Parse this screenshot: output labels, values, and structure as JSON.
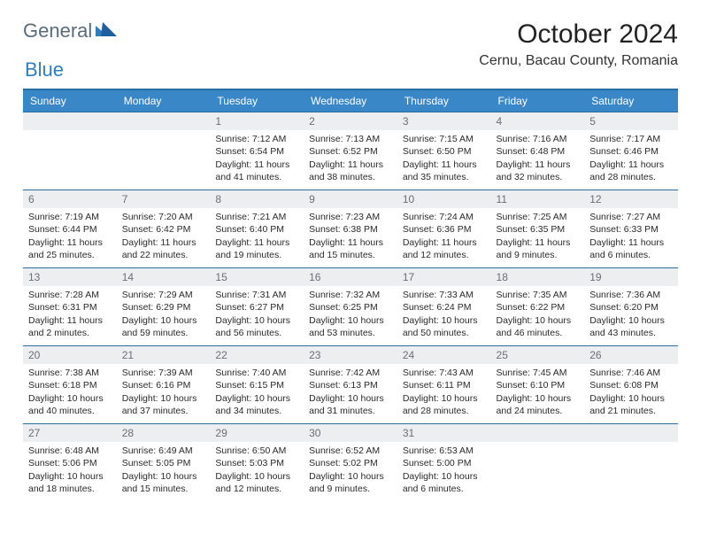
{
  "logo": {
    "text1": "General",
    "text2": "Blue"
  },
  "title": "October 2024",
  "location": "Cernu, Bacau County, Romania",
  "colors": {
    "header_bg": "#3a87c8",
    "header_border": "#2a6da3",
    "daynum_bg": "#eceeef",
    "daynum_color": "#6a6f74",
    "logo_gray": "#5a6b7a",
    "logo_blue": "#2f7fbf"
  },
  "dayHeaders": [
    "Sunday",
    "Monday",
    "Tuesday",
    "Wednesday",
    "Thursday",
    "Friday",
    "Saturday"
  ],
  "weeks": [
    [
      null,
      null,
      {
        "n": "1",
        "sr": "7:12 AM",
        "ss": "6:54 PM",
        "dl": "11 hours and 41 minutes."
      },
      {
        "n": "2",
        "sr": "7:13 AM",
        "ss": "6:52 PM",
        "dl": "11 hours and 38 minutes."
      },
      {
        "n": "3",
        "sr": "7:15 AM",
        "ss": "6:50 PM",
        "dl": "11 hours and 35 minutes."
      },
      {
        "n": "4",
        "sr": "7:16 AM",
        "ss": "6:48 PM",
        "dl": "11 hours and 32 minutes."
      },
      {
        "n": "5",
        "sr": "7:17 AM",
        "ss": "6:46 PM",
        "dl": "11 hours and 28 minutes."
      }
    ],
    [
      {
        "n": "6",
        "sr": "7:19 AM",
        "ss": "6:44 PM",
        "dl": "11 hours and 25 minutes."
      },
      {
        "n": "7",
        "sr": "7:20 AM",
        "ss": "6:42 PM",
        "dl": "11 hours and 22 minutes."
      },
      {
        "n": "8",
        "sr": "7:21 AM",
        "ss": "6:40 PM",
        "dl": "11 hours and 19 minutes."
      },
      {
        "n": "9",
        "sr": "7:23 AM",
        "ss": "6:38 PM",
        "dl": "11 hours and 15 minutes."
      },
      {
        "n": "10",
        "sr": "7:24 AM",
        "ss": "6:36 PM",
        "dl": "11 hours and 12 minutes."
      },
      {
        "n": "11",
        "sr": "7:25 AM",
        "ss": "6:35 PM",
        "dl": "11 hours and 9 minutes."
      },
      {
        "n": "12",
        "sr": "7:27 AM",
        "ss": "6:33 PM",
        "dl": "11 hours and 6 minutes."
      }
    ],
    [
      {
        "n": "13",
        "sr": "7:28 AM",
        "ss": "6:31 PM",
        "dl": "11 hours and 2 minutes."
      },
      {
        "n": "14",
        "sr": "7:29 AM",
        "ss": "6:29 PM",
        "dl": "10 hours and 59 minutes."
      },
      {
        "n": "15",
        "sr": "7:31 AM",
        "ss": "6:27 PM",
        "dl": "10 hours and 56 minutes."
      },
      {
        "n": "16",
        "sr": "7:32 AM",
        "ss": "6:25 PM",
        "dl": "10 hours and 53 minutes."
      },
      {
        "n": "17",
        "sr": "7:33 AM",
        "ss": "6:24 PM",
        "dl": "10 hours and 50 minutes."
      },
      {
        "n": "18",
        "sr": "7:35 AM",
        "ss": "6:22 PM",
        "dl": "10 hours and 46 minutes."
      },
      {
        "n": "19",
        "sr": "7:36 AM",
        "ss": "6:20 PM",
        "dl": "10 hours and 43 minutes."
      }
    ],
    [
      {
        "n": "20",
        "sr": "7:38 AM",
        "ss": "6:18 PM",
        "dl": "10 hours and 40 minutes."
      },
      {
        "n": "21",
        "sr": "7:39 AM",
        "ss": "6:16 PM",
        "dl": "10 hours and 37 minutes."
      },
      {
        "n": "22",
        "sr": "7:40 AM",
        "ss": "6:15 PM",
        "dl": "10 hours and 34 minutes."
      },
      {
        "n": "23",
        "sr": "7:42 AM",
        "ss": "6:13 PM",
        "dl": "10 hours and 31 minutes."
      },
      {
        "n": "24",
        "sr": "7:43 AM",
        "ss": "6:11 PM",
        "dl": "10 hours and 28 minutes."
      },
      {
        "n": "25",
        "sr": "7:45 AM",
        "ss": "6:10 PM",
        "dl": "10 hours and 24 minutes."
      },
      {
        "n": "26",
        "sr": "7:46 AM",
        "ss": "6:08 PM",
        "dl": "10 hours and 21 minutes."
      }
    ],
    [
      {
        "n": "27",
        "sr": "6:48 AM",
        "ss": "5:06 PM",
        "dl": "10 hours and 18 minutes."
      },
      {
        "n": "28",
        "sr": "6:49 AM",
        "ss": "5:05 PM",
        "dl": "10 hours and 15 minutes."
      },
      {
        "n": "29",
        "sr": "6:50 AM",
        "ss": "5:03 PM",
        "dl": "10 hours and 12 minutes."
      },
      {
        "n": "30",
        "sr": "6:52 AM",
        "ss": "5:02 PM",
        "dl": "10 hours and 9 minutes."
      },
      {
        "n": "31",
        "sr": "6:53 AM",
        "ss": "5:00 PM",
        "dl": "10 hours and 6 minutes."
      },
      null,
      null
    ]
  ],
  "labels": {
    "sunrise": "Sunrise:",
    "sunset": "Sunset:",
    "daylight": "Daylight:"
  }
}
